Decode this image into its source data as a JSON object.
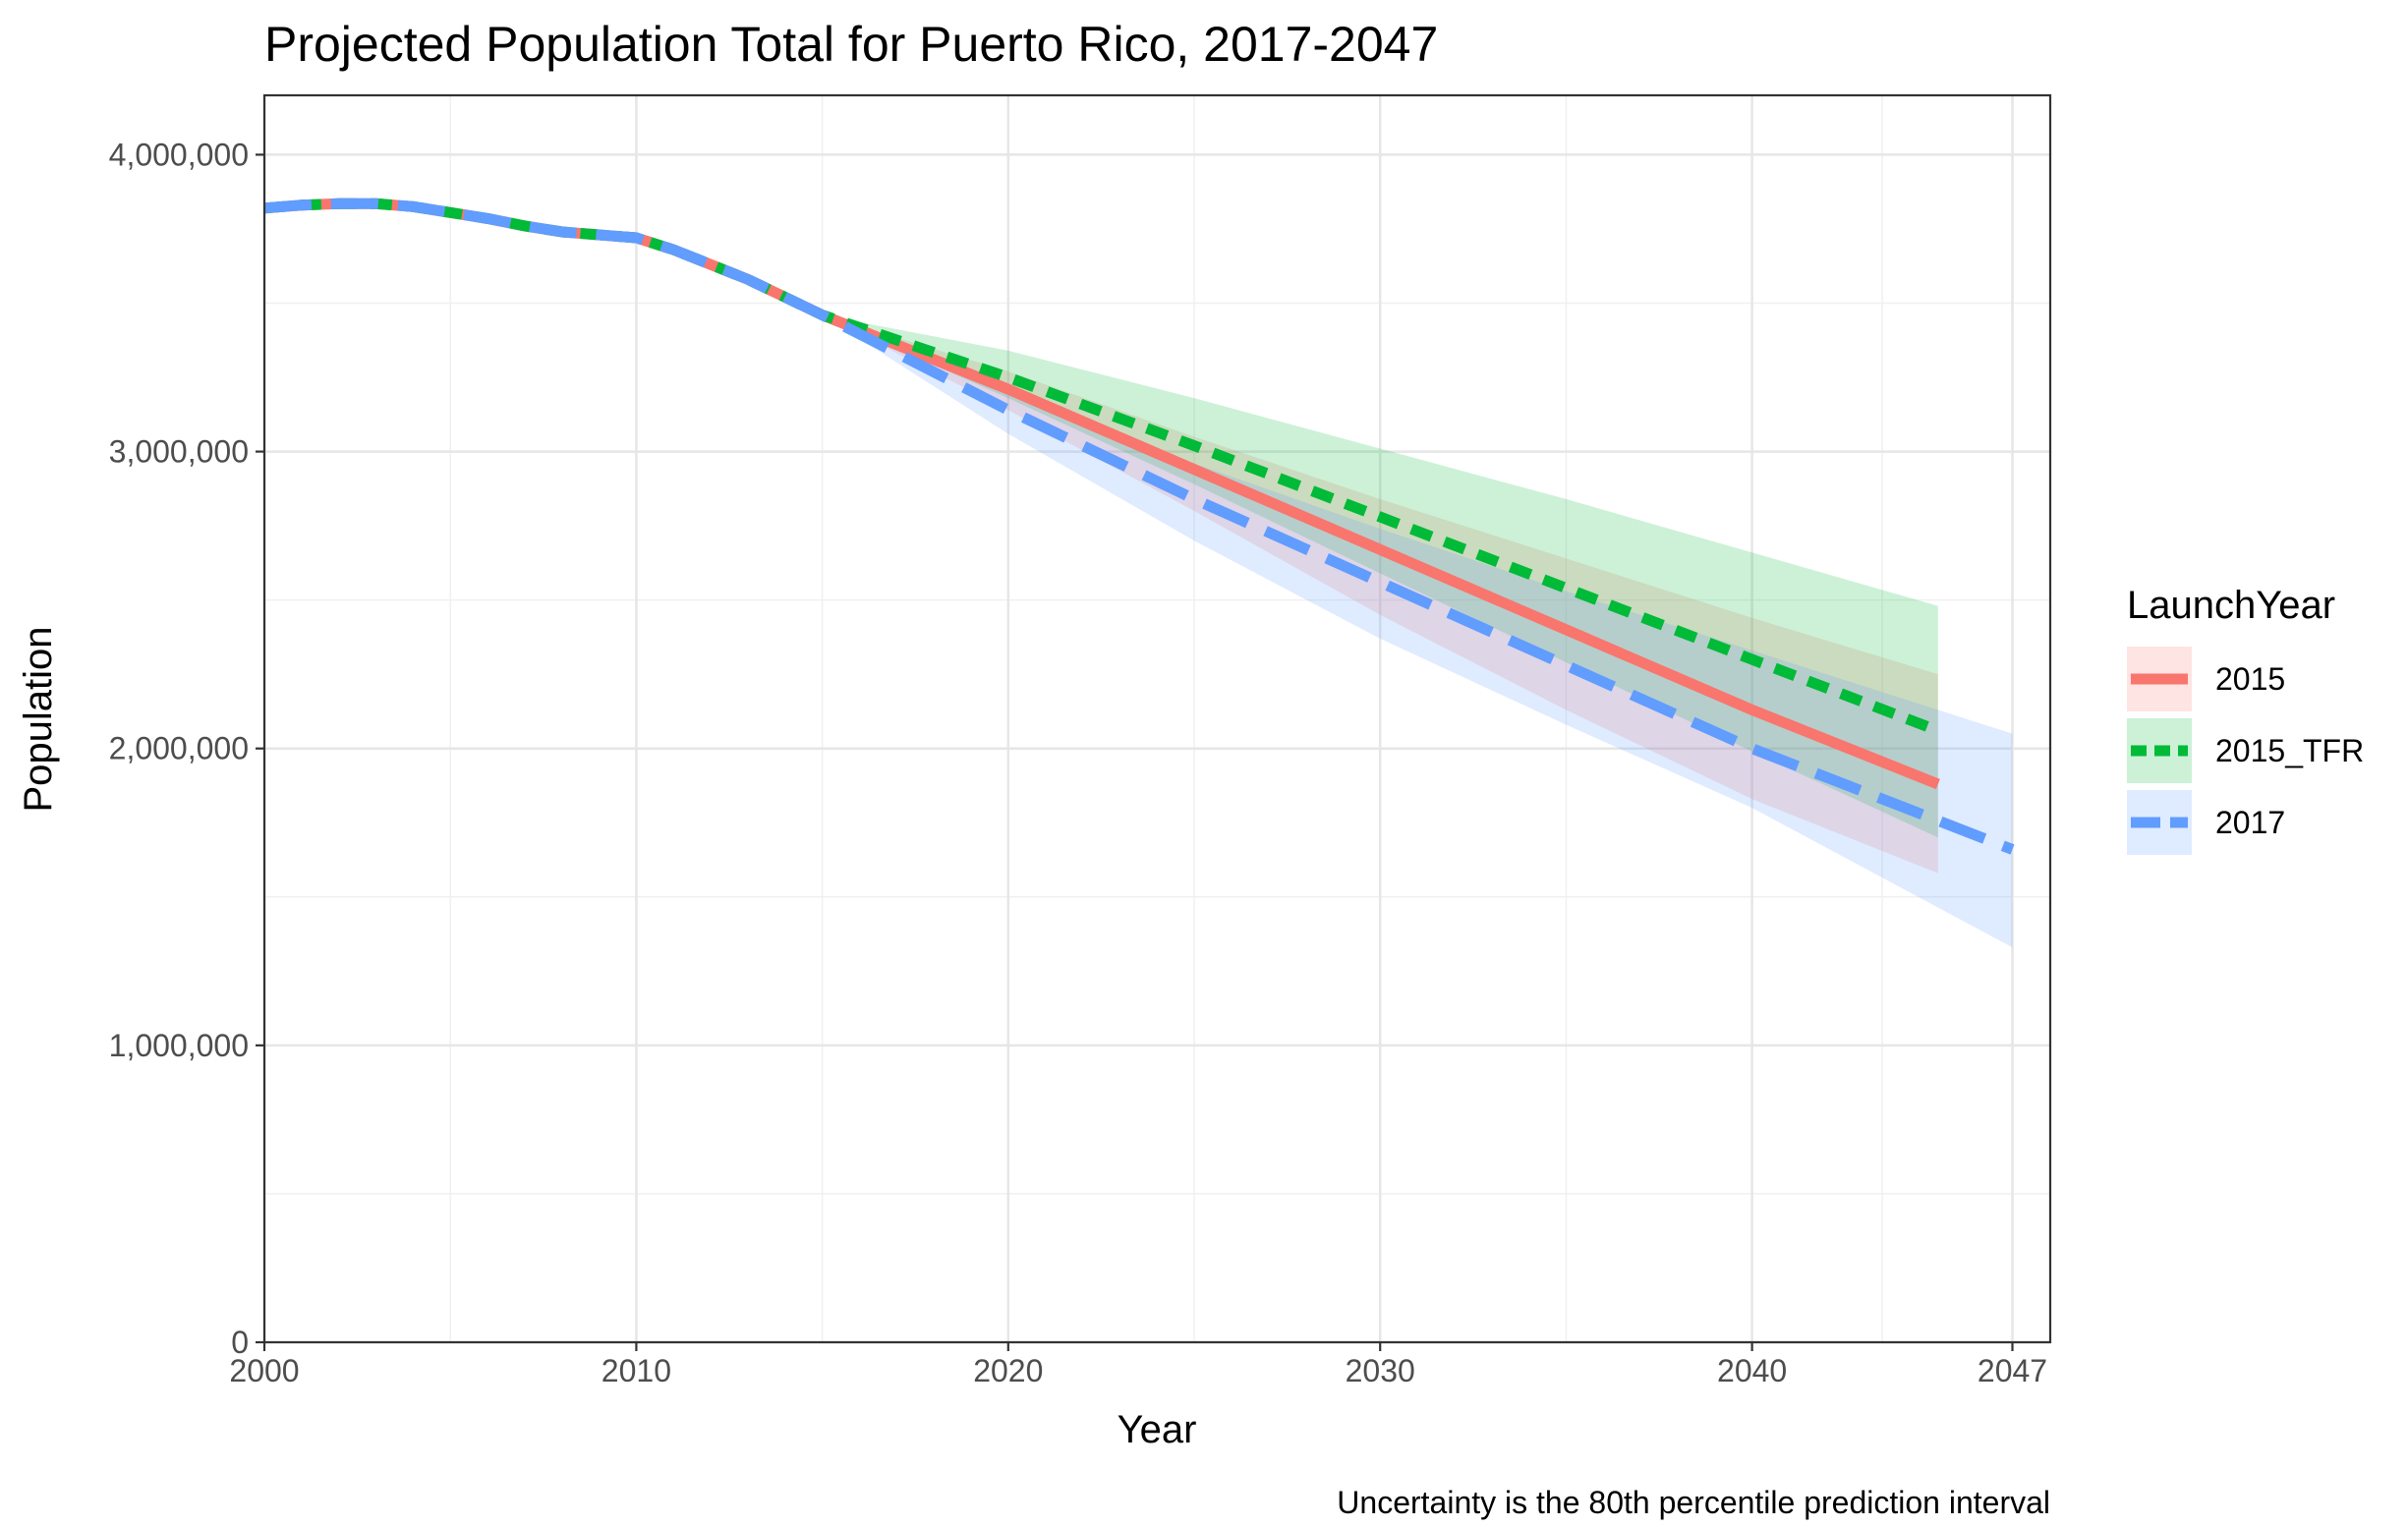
{
  "chart_data": {
    "type": "line",
    "title": "Projected Population Total for Puerto Rico, 2017-2047",
    "xlabel": "Year",
    "ylabel": "Population",
    "caption": "Uncertainty is the 80th percentile prediction interval",
    "xlim": [
      2000,
      2047
    ],
    "ylim": [
      0,
      4200000
    ],
    "x_ticks": [
      {
        "value": 2000,
        "label": "2000"
      },
      {
        "value": 2010,
        "label": "2010"
      },
      {
        "value": 2020,
        "label": "2020"
      },
      {
        "value": 2030,
        "label": "2030"
      },
      {
        "value": 2040,
        "label": "2040"
      },
      {
        "value": 2047,
        "label": "2047"
      }
    ],
    "x_minor_gridlines": [
      2005,
      2015,
      2025,
      2035,
      2043.5
    ],
    "y_ticks": [
      {
        "value": 0,
        "label": "0"
      },
      {
        "value": 1000000,
        "label": "1,000,000"
      },
      {
        "value": 2000000,
        "label": "2,000,000"
      },
      {
        "value": 3000000,
        "label": "3,000,000"
      },
      {
        "value": 4000000,
        "label": "4,000,000"
      }
    ],
    "y_minor_gridlines": [
      500000,
      1500000,
      2500000,
      3500000
    ],
    "grid": true,
    "legend": {
      "title": "LaunchYear",
      "position": "right",
      "entries": [
        "2015",
        "2015_TFR",
        "2017"
      ]
    },
    "historical": {
      "x": [
        2000,
        2001,
        2002,
        2003,
        2004,
        2005,
        2006,
        2007,
        2008,
        2009,
        2010,
        2011,
        2012,
        2013,
        2014,
        2015
      ],
      "y": [
        3820000,
        3830000,
        3835000,
        3835000,
        3825000,
        3805000,
        3785000,
        3760000,
        3740000,
        3730000,
        3720000,
        3680000,
        3630000,
        3580000,
        3520000,
        3460000
      ]
    },
    "series": [
      {
        "name": "2015",
        "color": "#F8766D",
        "dash": "solid",
        "start_year": 2015,
        "x": [
          2015,
          2020,
          2025,
          2030,
          2035,
          2040,
          2045
        ],
        "y": [
          3460000,
          3210000,
          2940000,
          2670000,
          2400000,
          2130000,
          1880000
        ],
        "lower": [
          3460000,
          3140000,
          2800000,
          2450000,
          2130000,
          1830000,
          1580000
        ],
        "upper": [
          3460000,
          3270000,
          3050000,
          2840000,
          2640000,
          2440000,
          2250000
        ]
      },
      {
        "name": "2015_TFR",
        "color": "#00BA38",
        "dash": "dashed",
        "start_year": 2015,
        "x": [
          2015,
          2020,
          2025,
          2030,
          2035,
          2040,
          2045
        ],
        "y": [
          3460000,
          3250000,
          3020000,
          2780000,
          2540000,
          2300000,
          2060000
        ],
        "lower": [
          3460000,
          3180000,
          2890000,
          2590000,
          2290000,
          1990000,
          1700000
        ],
        "upper": [
          3460000,
          3340000,
          3180000,
          3010000,
          2840000,
          2660000,
          2480000
        ]
      },
      {
        "name": "2017",
        "color": "#619CFF",
        "dash": "longdash",
        "start_year": 2015,
        "x": [
          2015,
          2020,
          2025,
          2030,
          2035,
          2040,
          2047
        ],
        "y": [
          3460000,
          3140000,
          2840000,
          2560000,
          2280000,
          2000000,
          1660000
        ],
        "lower": [
          3460000,
          3060000,
          2700000,
          2370000,
          2080000,
          1800000,
          1330000
        ],
        "upper": [
          3460000,
          3210000,
          2960000,
          2740000,
          2530000,
          2330000,
          2050000
        ]
      }
    ]
  }
}
